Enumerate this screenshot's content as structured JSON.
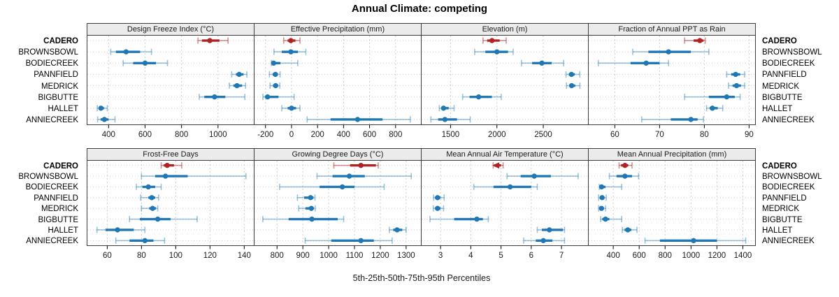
{
  "chart_data": {
    "type": "dot-whisker-percentiles",
    "title": "Annual Climate: competing",
    "caption": "5th-25th-50th-75th-95th Percentiles",
    "percentiles": [
      5,
      25,
      50,
      75,
      95
    ],
    "sites": [
      "CADERO",
      "BROWNSBOWL",
      "BODIECREEK",
      "PANNFIELD",
      "MEDRICK",
      "BIGBUTTE",
      "HALLET",
      "ANNIECREEK"
    ],
    "highlight_site": "CADERO",
    "colors": {
      "highlight": "#b22222",
      "highlight_light": "rgba(178,34,34,0.5)",
      "normal": "#1f77b4",
      "normal_light": "rgba(31,119,180,0.45)",
      "header_bg": "#ebebeb",
      "border": "#3c3c3c",
      "grid": "#cccccc",
      "tick_text": "#1a1a1a"
    },
    "grid": true,
    "rows": [
      {
        "panels": [
          {
            "label": "Design Freeze Index (°C)",
            "xlim": [
              280,
              1200
            ],
            "ticks": [
              400,
              600,
              800,
              1000
            ],
            "values": {
              "CADERO": [
                890,
                912,
                955,
                1008,
                1055
              ],
              "BROWNSBOWL": [
                412,
                440,
                496,
                573,
                635
              ],
              "BODIECREEK": [
                480,
                535,
                600,
                660,
                723
              ],
              "PANNFIELD": [
                1075,
                1098,
                1116,
                1140,
                1158
              ],
              "MEDRICK": [
                1062,
                1085,
                1104,
                1132,
                1151
              ],
              "BIGBUTTE": [
                897,
                925,
                981,
                1040,
                1147
              ],
              "HALLET": [
                338,
                347,
                358,
                375,
                393
              ],
              "ANNIECREEK": [
                340,
                356,
                377,
                400,
                435
              ]
            }
          },
          {
            "label": "Effective Precipitation (mm)",
            "xlim": [
              -290,
              1000
            ],
            "ticks": [
              -200,
              0,
              200,
              400,
              600,
              800
            ],
            "values": {
              "CADERO": [
                -60,
                -30,
                -5,
                30,
                65
              ],
              "BROWNSBOWL": [
                -135,
                -75,
                -5,
                50,
                110
              ],
              "BODIECREEK": [
                -155,
                -148,
                -138,
                -85,
                48
              ],
              "PANNFIELD": [
                -170,
                -145,
                -124,
                -105,
                -88
              ],
              "MEDRICK": [
                -165,
                -143,
                -122,
                -103,
                -90
              ],
              "BIGBUTTE": [
                -220,
                -205,
                -184,
                -100,
                20
              ],
              "HALLET": [
                -75,
                -30,
                0,
                35,
                65
              ],
              "ANNIECREEK": [
                120,
                300,
                508,
                700,
                913
              ]
            }
          },
          {
            "label": "Elevation (m)",
            "xlim": [
              1180,
              2990
            ],
            "ticks": [
              1500,
              2000,
              2500
            ],
            "values": {
              "CADERO": [
                1850,
                1895,
                1947,
                2030,
                2100
              ],
              "BROWNSBOWL": [
                1760,
                1875,
                2000,
                2120,
                2175
              ],
              "BODIECREEK": [
                2265,
                2380,
                2485,
                2590,
                2720
              ],
              "PANNFIELD": [
                2745,
                2775,
                2804,
                2840,
                2894
              ],
              "MEDRICK": [
                2750,
                2780,
                2806,
                2845,
                2895
              ],
              "BIGBUTTE": [
                1630,
                1705,
                1803,
                1945,
                2046
              ],
              "HALLET": [
                1379,
                1400,
                1424,
                1480,
                1538
              ],
              "ANNIECREEK": [
                1288,
                1365,
                1439,
                1570,
                1712
              ]
            }
          },
          {
            "label": "Fraction of Annual PPT as Rain",
            "xlim": [
              54,
              91.5
            ],
            "ticks": [
              60,
              70,
              80,
              90
            ],
            "values": {
              "CADERO": [
                75.6,
                77.6,
                79,
                79.8,
                80.2
              ],
              "BROWNSBOWL": [
                64,
                67.5,
                72,
                77,
                81
              ],
              "BODIECREEK": [
                56.3,
                63.5,
                67,
                70,
                72
              ],
              "PANNFIELD": [
                85,
                86,
                87,
                88,
                89
              ],
              "MEDRICK": [
                85.4,
                86.3,
                87.2,
                88.2,
                89
              ],
              "BIGBUTTE": [
                75.6,
                81,
                85,
                86.8,
                88
              ],
              "HALLET": [
                80.5,
                81.2,
                81.8,
                83,
                84.1
              ],
              "ANNIECREEK": [
                66,
                72.5,
                77,
                78.5,
                79.8
              ]
            }
          }
        ]
      },
      {
        "panels": [
          {
            "label": "Frost-Free Days",
            "xlim": [
              48,
              146
            ],
            "ticks": [
              60,
              80,
              100,
              120,
              140
            ],
            "values": {
              "CADERO": [
                91.5,
                93,
                95,
                99,
                103.5
              ],
              "BROWNSBOWL": [
                80,
                88,
                94,
                107,
                141
              ],
              "BODIECREEK": [
                77,
                80.5,
                84,
                88,
                91.5
              ],
              "PANNFIELD": [
                79.5,
                84,
                86,
                88,
                90
              ],
              "MEDRICK": [
                80,
                84.5,
                86.5,
                88.5,
                89.5
              ],
              "BIGBUTTE": [
                73,
                79,
                89.5,
                97,
                112.5
              ],
              "HALLET": [
                54,
                59,
                66,
                75.5,
                82
              ],
              "ANNIECREEK": [
                65,
                73,
                82,
                87,
                93.5
              ]
            }
          },
          {
            "label": "Growing Degree Days (°C)",
            "xlim": [
              710,
              1360
            ],
            "ticks": [
              800,
              900,
              1000,
              1100,
              1200,
              1300
            ],
            "values": {
              "CADERO": [
                1020,
                1083,
                1125,
                1183,
                1192
              ],
              "BROWNSBOWL": [
                955,
                1015,
                1080,
                1140,
                1320
              ],
              "BODIECREEK": [
                810,
                965,
                1053,
                1100,
                1215
              ],
              "PANNFIELD": [
                879,
                905,
                930,
                941,
                947
              ],
              "MEDRICK": [
                884,
                910,
                933,
                942,
                948
              ],
              "BIGBUTTE": [
                745,
                845,
                935,
                1035,
                1058
              ],
              "HALLET": [
                1235,
                1250,
                1265,
                1285,
                1300
              ],
              "ANNIECREEK": [
                909,
                1010,
                1125,
                1175,
                1246
              ]
            }
          },
          {
            "label": "Mean Annual Air Temperature (°C)",
            "xlim": [
              2.35,
              7.9
            ],
            "ticks": [
              3,
              4,
              5,
              6,
              7
            ],
            "markers": {
              "CADERO": "triangle-left"
            },
            "values": {
              "CADERO": [
                4.74,
                4.78,
                4.85,
                5.0,
                5.07
              ],
              "BROWNSBOWL": [
                5.2,
                5.65,
                6.1,
                6.65,
                7.55
              ],
              "BODIECREEK": [
                4.1,
                4.75,
                5.3,
                6.0,
                6.2
              ],
              "PANNFIELD": [
                2.77,
                2.82,
                2.9,
                3.0,
                3.12
              ],
              "MEDRICK": [
                2.76,
                2.82,
                2.9,
                3.0,
                3.1
              ],
              "BIGBUTTE": [
                2.65,
                3.45,
                4.2,
                4.4,
                4.58
              ],
              "HALLET": [
                6.2,
                6.35,
                6.6,
                7.05,
                7.1
              ],
              "ANNIECREEK": [
                5.75,
                6.15,
                6.4,
                6.7,
                7.1
              ]
            }
          },
          {
            "label": "Mean Annual Precipitation (mm)",
            "xlim": [
              205,
              1500
            ],
            "ticks": [
              400,
              600,
              800,
              1000,
              1200,
              1400
            ],
            "values": {
              "CADERO": [
                445,
                460,
                490,
                515,
                545
              ],
              "BROWNSBOWL": [
                370,
                425,
                490,
                545,
                595
              ],
              "BODIECREEK": [
                292,
                300,
                310,
                340,
                465
              ],
              "PANNFIELD": [
                287,
                300,
                314,
                330,
                346
              ],
              "MEDRICK": [
                287,
                298,
                309,
                328,
                341
              ],
              "BIGBUTTE": [
                303,
                315,
                340,
                370,
                465
              ],
              "HALLET": [
                470,
                487,
                512,
                540,
                583
              ],
              "ANNIECREEK": [
                645,
                760,
                1020,
                1200,
                1422
              ]
            }
          }
        ]
      }
    ]
  }
}
